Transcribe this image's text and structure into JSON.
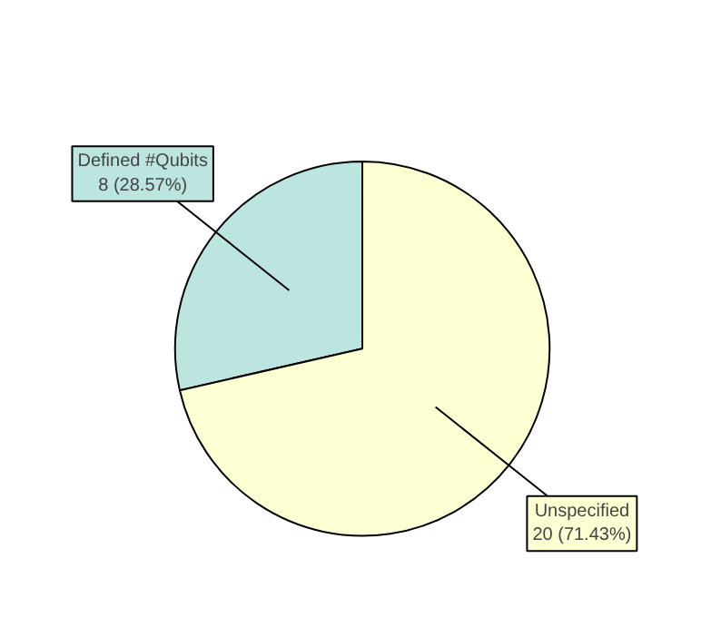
{
  "chart_data": {
    "type": "pie",
    "categories": [
      "Defined #Qubits",
      "Unspecified"
    ],
    "values": [
      8,
      20
    ],
    "colors": [
      "#bde5df",
      "#ffffd4"
    ],
    "value_labels": [
      "8 (28.57%)",
      "20 (71.43%)"
    ]
  }
}
